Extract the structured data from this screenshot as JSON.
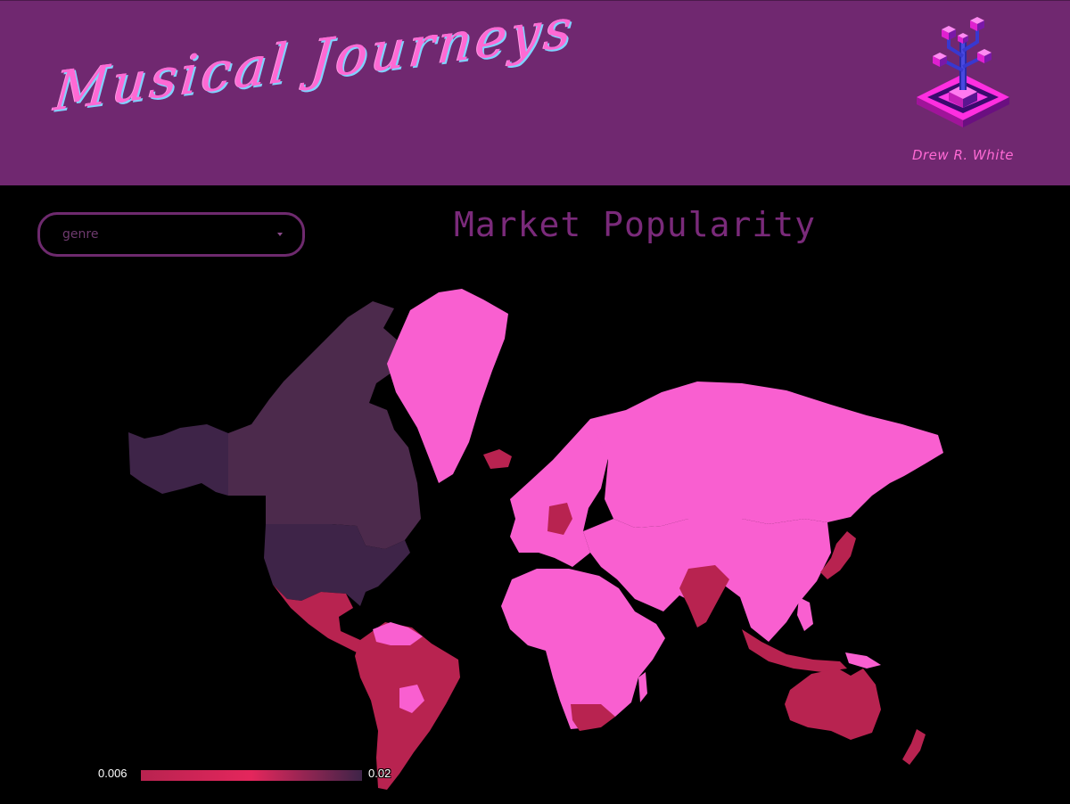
{
  "header": {
    "title": "Musical Journeys",
    "author": "Drew R. White",
    "logo_icon": "isometric-cube-tree-icon"
  },
  "filter": {
    "placeholder": "genre"
  },
  "colors": {
    "header_bg": "#702870",
    "accent_pink": "#ff69d4",
    "low_value": "#f95fd0",
    "mid_value": "#b82350",
    "high_value": "#3e2448"
  },
  "chart_data": {
    "type": "heatmap",
    "title": "Market Popularity",
    "colorbar": {
      "min_label": "0.006",
      "max_label": "0.02",
      "range": [
        0.006,
        0.02
      ]
    },
    "regions": [
      {
        "name": "United States",
        "level": "high"
      },
      {
        "name": "Canada",
        "level": "high"
      },
      {
        "name": "Alaska",
        "level": "high"
      },
      {
        "name": "Mexico",
        "level": "mid"
      },
      {
        "name": "Central America",
        "level": "mid"
      },
      {
        "name": "Brazil",
        "level": "mid"
      },
      {
        "name": "Argentina",
        "level": "mid"
      },
      {
        "name": "Germany",
        "level": "mid"
      },
      {
        "name": "India",
        "level": "mid"
      },
      {
        "name": "Japan",
        "level": "mid"
      },
      {
        "name": "Australia",
        "level": "mid"
      },
      {
        "name": "New Zealand",
        "level": "mid"
      },
      {
        "name": "Indonesia",
        "level": "mid"
      },
      {
        "name": "South Africa",
        "level": "mid"
      },
      {
        "name": "Iceland",
        "level": "mid"
      },
      {
        "name": "Russia",
        "level": "low"
      },
      {
        "name": "China",
        "level": "low"
      },
      {
        "name": "Greenland",
        "level": "low"
      },
      {
        "name": "Africa",
        "level": "low"
      },
      {
        "name": "Europe",
        "level": "low"
      }
    ]
  }
}
